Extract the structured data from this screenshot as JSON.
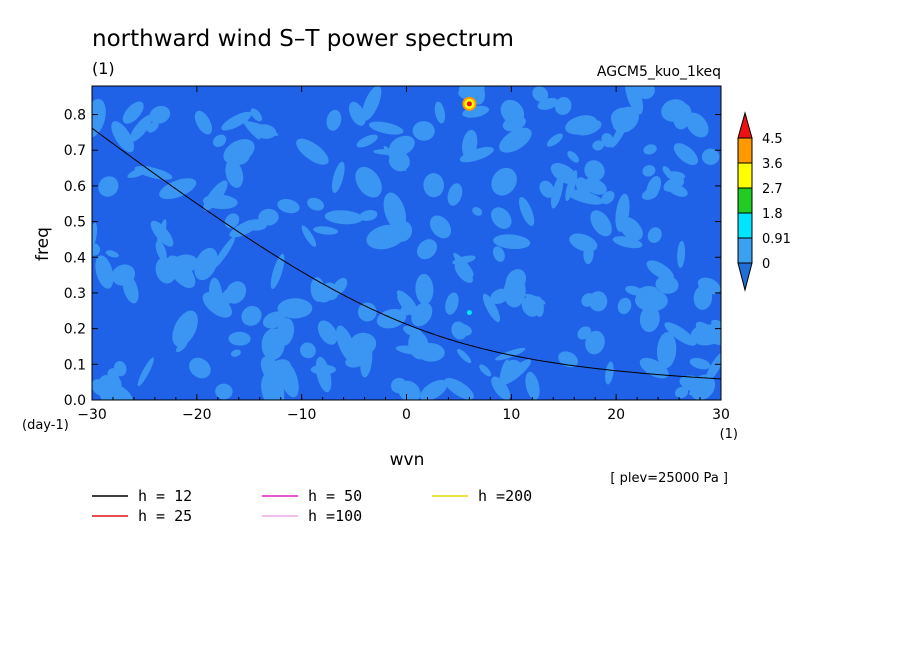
{
  "chart_data": {
    "type": "heatmap",
    "title": "northward wind S–T power spectrum",
    "units_label": "(1)",
    "dataset_label": "AGCM5_kuo_1keq",
    "xlabel": "wvn",
    "ylabel": "freq",
    "x_unit_label": "(1)",
    "y_unit_label": "(day-1)",
    "xlim": [
      -30,
      30
    ],
    "ylim": [
      0,
      0.88
    ],
    "x_ticks": [
      -30,
      -20,
      -10,
      0,
      10,
      20,
      30
    ],
    "y_ticks": [
      0.0,
      0.1,
      0.2,
      0.3,
      0.4,
      0.5,
      0.6,
      0.7,
      0.8
    ],
    "x_tick_labels": [
      "−30",
      "−20",
      "−10",
      "0",
      "10",
      "20",
      "30"
    ],
    "y_tick_labels": [
      "0.0",
      "0.1",
      "0.2",
      "0.3",
      "0.4",
      "0.5",
      "0.6",
      "0.7",
      "0.8"
    ],
    "colorbar": {
      "levels": [
        "0",
        "0.91",
        "1.8",
        "2.7",
        "3.6",
        "4.5"
      ],
      "colors": [
        "#1f6fd6",
        "#3aa0f0",
        "#00e5ff",
        "#22cc22",
        "#ffff00",
        "#ff9900",
        "#ee1111"
      ]
    },
    "background_field": {
      "dominant_range": "0 to 0.91",
      "colors": [
        "#1f62e8",
        "#3b95f2"
      ]
    },
    "peaks": [
      {
        "wvn": 6,
        "freq": 0.83,
        "max_level": "4.5"
      },
      {
        "wvn": 6,
        "freq": 0.245,
        "max_level": "0.91"
      }
    ],
    "series": [
      {
        "name": "h = 12",
        "color": "#000000",
        "equivalent_depth": 12
      },
      {
        "name": "h = 25",
        "color": "#e01010",
        "equivalent_depth": 25
      },
      {
        "name": "h = 50",
        "color": "#e020c0",
        "equivalent_depth": 50
      },
      {
        "name": "h =100",
        "color": "#e8a8e8",
        "equivalent_depth": 100
      },
      {
        "name": "h =200",
        "color": "#e8d800",
        "equivalent_depth": 200
      }
    ],
    "legend_position": "bottom-left",
    "annotation": "[ plev=25000 Pa ]"
  }
}
